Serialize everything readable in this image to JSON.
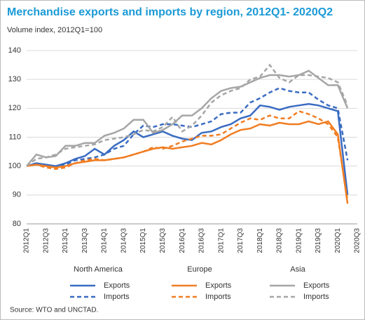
{
  "chart_data": {
    "type": "line",
    "title": "Merchandise exports and imports by region, 2012Q1- 2020Q2",
    "subtitle": "Volume index, 2012Q1=100",
    "source": "Source:  WTO and UNCTAD.",
    "categories": [
      "2012Q1",
      null,
      "2012Q3",
      null,
      "2013Q1",
      null,
      "2013Q3",
      null,
      "2014Q1",
      null,
      "2014Q3",
      null,
      "2015Q1",
      null,
      "2015Q3",
      null,
      "2016Q1",
      null,
      "2016Q3",
      null,
      "2017Q1",
      null,
      "2017Q3",
      null,
      "2018Q1",
      null,
      "2018Q3",
      null,
      "2019Q1",
      null,
      "2019Q3",
      null,
      "2020Q1",
      null,
      "2020Q3"
    ],
    "ylim": [
      80,
      140
    ],
    "yticks": [
      80,
      90,
      100,
      110,
      120,
      130,
      140
    ],
    "grid": true,
    "groups": [
      {
        "name": "North America",
        "series": [
          {
            "name": "Exports",
            "color": "#3a6cc2",
            "dash": false,
            "values": [
              100,
              101,
              100.5,
              100,
              101,
              102.5,
              103.5,
              106,
              104,
              107,
              109,
              112,
              110,
              111,
              112,
              110.5,
              109.5,
              109,
              111.5,
              112,
              113.5,
              114.5,
              116.5,
              117.5,
              121,
              120.5,
              119.5,
              120.5,
              121,
              121.5,
              121,
              120,
              119,
              90,
              null
            ]
          },
          {
            "name": "Imports",
            "color": "#3a6cc2",
            "dash": true,
            "values": [
              100,
              101,
              100,
              99.5,
              100.5,
              102,
              102.5,
              103,
              104,
              106,
              107,
              111,
              114,
              113.5,
              114.5,
              114.5,
              114,
              113.5,
              114.5,
              115.5,
              118,
              118.5,
              118.5,
              122,
              123.5,
              125.5,
              127,
              126,
              125.5,
              125.5,
              123,
              121,
              120,
              102,
              null
            ]
          }
        ]
      },
      {
        "name": "Europe",
        "series": [
          {
            "name": "Exports",
            "color": "#f07d22",
            "dash": false,
            "values": [
              100,
              100.5,
              100,
              99.5,
              100,
              101,
              101.5,
              102,
              102,
              102.5,
              103,
              104,
              105,
              106,
              106.5,
              106,
              106.5,
              107,
              108,
              107.5,
              109,
              111,
              112.5,
              113,
              114.5,
              114,
              115,
              114.5,
              114.5,
              115.5,
              114.5,
              115.5,
              111,
              87,
              null
            ]
          },
          {
            "name": "Imports",
            "color": "#f07d22",
            "dash": true,
            "values": [
              100,
              100.5,
              99.5,
              99,
              99.5,
              101,
              102,
              102.5,
              102,
              102.5,
              103,
              104,
              105,
              106.5,
              106,
              107,
              108.5,
              109.5,
              110.5,
              110.5,
              111,
              113,
              115,
              116.5,
              116,
              117.5,
              116.5,
              116.5,
              119,
              118,
              116.5,
              114.5,
              110,
              88,
              null
            ]
          }
        ]
      },
      {
        "name": "Asia",
        "series": [
          {
            "name": "Exports",
            "color": "#a6a6a6",
            "dash": false,
            "values": [
              100,
              104,
              103,
              103.5,
              107,
              107,
              108,
              108,
              110.5,
              111.5,
              113,
              116,
              116,
              111.5,
              112.5,
              114.5,
              117.5,
              117.5,
              120,
              123.5,
              126,
              127,
              127.5,
              129,
              130.5,
              131.5,
              131.5,
              131,
              131.5,
              133,
              130.5,
              128,
              128,
              120,
              null
            ]
          },
          {
            "name": "Imports",
            "color": "#a6a6a6",
            "dash": true,
            "values": [
              100,
              102.5,
              103,
              104,
              106,
              106.5,
              107,
              107.5,
              109,
              109.5,
              110,
              111,
              112.5,
              112,
              113.5,
              117,
              112,
              114,
              117.5,
              122,
              124.5,
              126,
              127,
              130,
              131,
              135,
              130.5,
              129,
              131.5,
              131.5,
              131,
              130.5,
              129,
              121,
              null
            ]
          }
        ]
      }
    ]
  }
}
